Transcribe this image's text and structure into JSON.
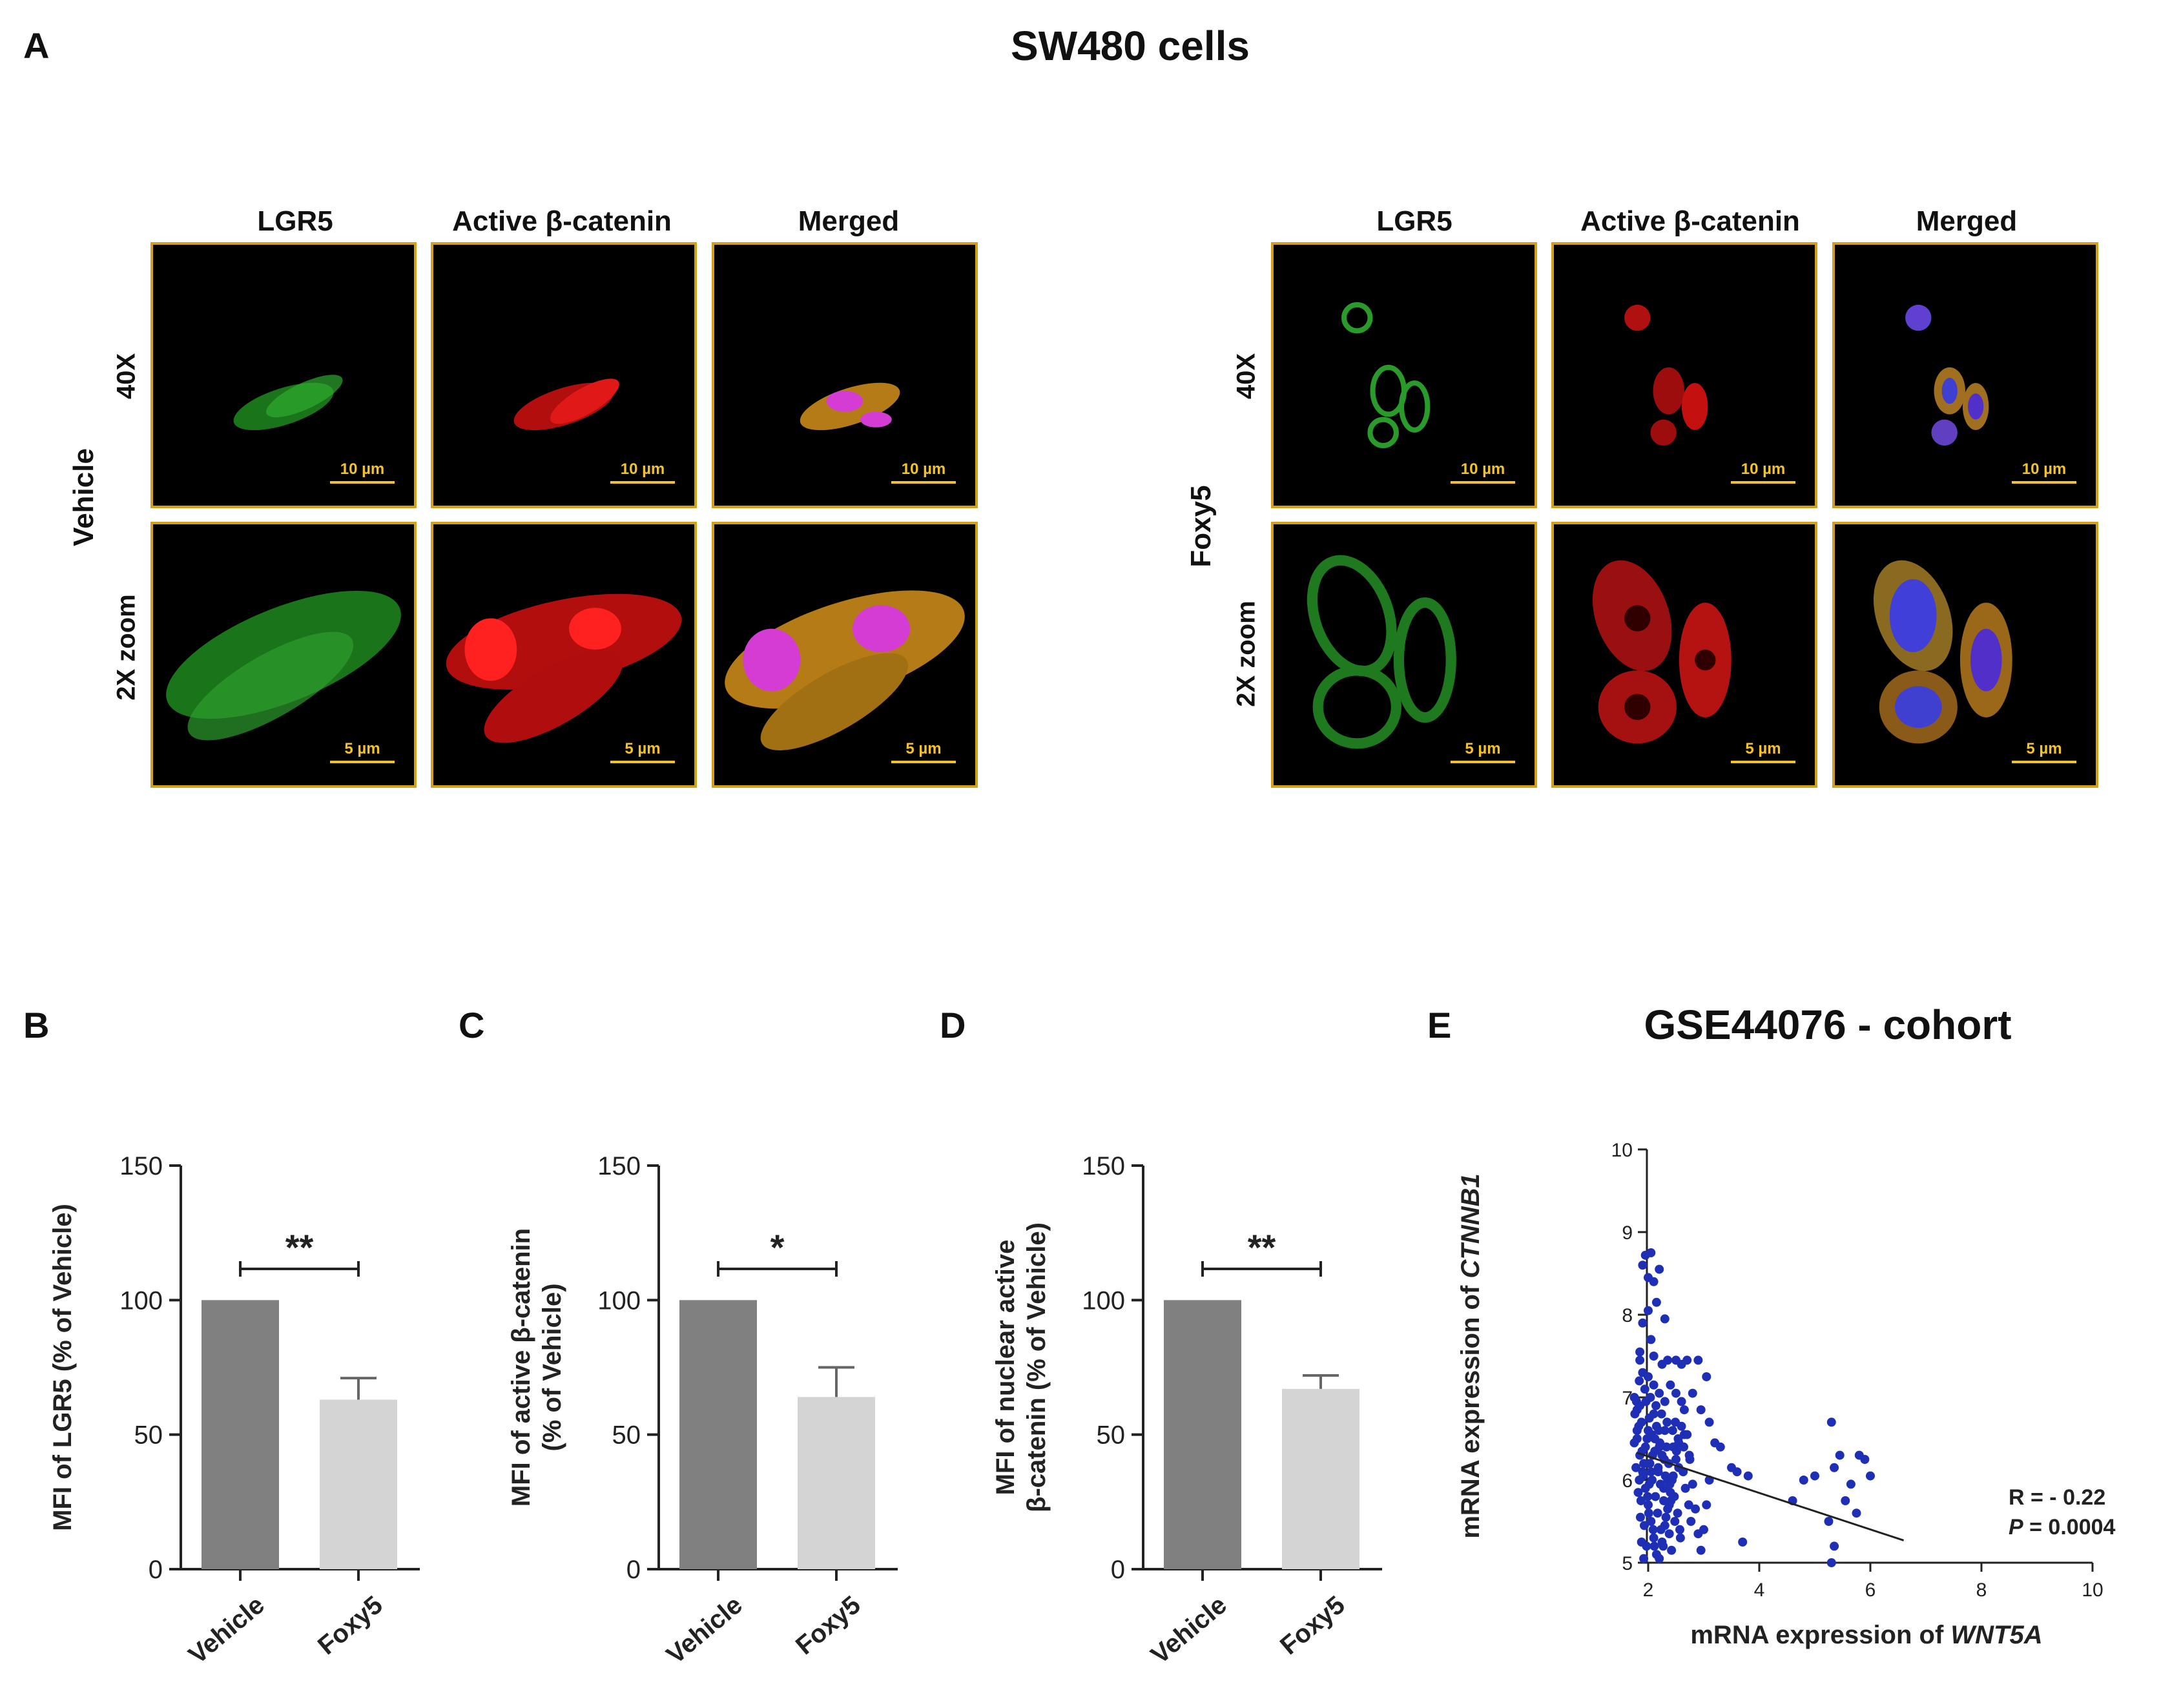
{
  "panel_a": {
    "letter": "A",
    "title": "SW480 cells",
    "groups": [
      {
        "name": "Vehicle",
        "columns": [
          "LGR5",
          "Active β-catenin",
          "Merged"
        ],
        "rows": [
          {
            "label": "40X",
            "scale_bar": "10 µm"
          },
          {
            "label": "2X zoom",
            "scale_bar": "5 µm"
          }
        ]
      },
      {
        "name": "Foxy5",
        "columns": [
          "LGR5",
          "Active β-catenin",
          "Merged"
        ],
        "rows": [
          {
            "label": "40X",
            "scale_bar": "10 µm"
          },
          {
            "label": "2X zoom",
            "scale_bar": "5 µm"
          }
        ]
      }
    ]
  },
  "chart_data": [
    {
      "panel": "B",
      "type": "bar",
      "categories": [
        "Vehicle",
        "Foxy5"
      ],
      "values": [
        100,
        63
      ],
      "errors": [
        0,
        8
      ],
      "colors": [
        "#808080",
        "#d4d4d4"
      ],
      "ylabel": "MFI of LGR5 (% of Vehicle)",
      "ylim": [
        0,
        150
      ],
      "yticks": [
        "0",
        "50",
        "100",
        "150"
      ],
      "significance": "**"
    },
    {
      "panel": "C",
      "type": "bar",
      "categories": [
        "Vehicle",
        "Foxy5"
      ],
      "values": [
        100,
        64
      ],
      "errors": [
        0,
        11
      ],
      "colors": [
        "#808080",
        "#d4d4d4"
      ],
      "ylabel_lines": [
        "MFI of active β-catenin",
        "(% of Vehicle)"
      ],
      "ylim": [
        0,
        150
      ],
      "yticks": [
        "0",
        "50",
        "100",
        "150"
      ],
      "significance": "*"
    },
    {
      "panel": "D",
      "type": "bar",
      "categories": [
        "Vehicle",
        "Foxy5"
      ],
      "values": [
        100,
        67
      ],
      "errors": [
        0,
        5
      ],
      "colors": [
        "#808080",
        "#d4d4d4"
      ],
      "ylabel_lines": [
        "MFI of nuclear active",
        "β-catenin (% of Vehicle)"
      ],
      "ylim": [
        0,
        150
      ],
      "yticks": [
        "0",
        "50",
        "100",
        "150"
      ],
      "significance": "**"
    },
    {
      "panel": "E",
      "type": "scatter",
      "title": "GSE44076 - cohort",
      "xlabel_prefix": "mRNA expression of ",
      "xlabel_gene": "WNT5A",
      "ylabel_prefix": "mRNA expression of ",
      "ylabel_gene": "CTNNB1",
      "xlim": [
        0,
        10
      ],
      "ylim": [
        5,
        10
      ],
      "xticks": [
        "2",
        "4",
        "6",
        "8",
        "10"
      ],
      "yticks": [
        "5",
        "6",
        "7",
        "8",
        "9",
        "10"
      ],
      "color": "#1f2fb5",
      "fit_line": {
        "x": [
          1.8,
          6.6
        ],
        "y": [
          6.33,
          5.27
        ]
      },
      "stats_r": "R = - 0.22",
      "stats_p_label": "P",
      "stats_p_value": " = 0.0004",
      "points": [
        [
          1.75,
          7.0
        ],
        [
          1.8,
          6.85
        ],
        [
          1.85,
          7.45
        ],
        [
          1.9,
          8.6
        ],
        [
          1.95,
          8.72
        ],
        [
          2.0,
          8.45
        ],
        [
          2.05,
          8.75
        ],
        [
          2.1,
          8.4
        ],
        [
          2.2,
          8.55
        ],
        [
          2.15,
          8.15
        ],
        [
          2.0,
          8.05
        ],
        [
          1.9,
          7.9
        ],
        [
          2.3,
          7.95
        ],
        [
          2.05,
          7.7
        ],
        [
          1.85,
          7.55
        ],
        [
          2.1,
          7.5
        ],
        [
          2.25,
          7.4
        ],
        [
          2.35,
          7.45
        ],
        [
          2.5,
          7.45
        ],
        [
          2.6,
          7.4
        ],
        [
          2.7,
          7.45
        ],
        [
          2.9,
          7.45
        ],
        [
          3.05,
          7.25
        ],
        [
          2.8,
          7.05
        ],
        [
          2.95,
          6.85
        ],
        [
          3.1,
          6.7
        ],
        [
          3.2,
          6.45
        ],
        [
          3.3,
          6.4
        ],
        [
          3.5,
          6.15
        ],
        [
          3.6,
          6.1
        ],
        [
          3.8,
          6.05
        ],
        [
          3.7,
          5.25
        ],
        [
          4.6,
          5.75
        ],
        [
          4.8,
          6.0
        ],
        [
          5.0,
          6.05
        ],
        [
          5.3,
          6.7
        ],
        [
          5.35,
          6.15
        ],
        [
          5.45,
          6.3
        ],
        [
          5.55,
          5.75
        ],
        [
          5.25,
          5.5
        ],
        [
          5.35,
          5.2
        ],
        [
          5.3,
          5.0
        ],
        [
          5.75,
          5.6
        ],
        [
          5.8,
          6.3
        ],
        [
          5.9,
          6.25
        ],
        [
          6.0,
          6.05
        ],
        [
          5.65,
          5.95
        ],
        [
          1.8,
          6.6
        ],
        [
          1.85,
          6.3
        ],
        [
          1.9,
          6.1
        ],
        [
          1.95,
          5.9
        ],
        [
          2.0,
          5.7
        ],
        [
          2.05,
          5.5
        ],
        [
          2.1,
          5.3
        ],
        [
          2.15,
          5.1
        ],
        [
          2.2,
          5.05
        ],
        [
          2.25,
          5.25
        ],
        [
          2.3,
          5.45
        ],
        [
          2.35,
          5.65
        ],
        [
          2.4,
          5.85
        ],
        [
          2.45,
          6.05
        ],
        [
          2.5,
          6.25
        ],
        [
          2.55,
          6.45
        ],
        [
          2.6,
          6.65
        ],
        [
          2.65,
          6.85
        ],
        [
          2.7,
          6.55
        ],
        [
          2.75,
          6.25
        ],
        [
          2.8,
          5.95
        ],
        [
          2.85,
          5.65
        ],
        [
          2.9,
          5.35
        ],
        [
          2.95,
          5.15
        ],
        [
          3.0,
          5.4
        ],
        [
          3.05,
          5.7
        ],
        [
          3.1,
          6.0
        ],
        [
          1.75,
          6.45
        ],
        [
          1.78,
          6.15
        ],
        [
          1.82,
          5.85
        ],
        [
          1.86,
          5.55
        ],
        [
          1.88,
          5.25
        ],
        [
          1.92,
          5.05
        ],
        [
          1.96,
          6.95
        ],
        [
          2.02,
          6.75
        ],
        [
          2.06,
          6.55
        ],
        [
          2.12,
          6.35
        ],
        [
          2.18,
          6.15
        ],
        [
          2.22,
          5.95
        ],
        [
          2.28,
          5.75
        ],
        [
          2.32,
          5.55
        ],
        [
          2.38,
          5.35
        ],
        [
          2.42,
          5.15
        ],
        [
          1.84,
          7.2
        ],
        [
          1.94,
          7.1
        ],
        [
          2.04,
          7.0
        ],
        [
          2.14,
          6.9
        ],
        [
          2.24,
          6.8
        ],
        [
          2.34,
          6.7
        ],
        [
          2.44,
          6.6
        ],
        [
          2.54,
          6.5
        ],
        [
          2.64,
          6.4
        ],
        [
          2.74,
          6.3
        ],
        [
          1.88,
          6.7
        ],
        [
          1.98,
          6.5
        ],
        [
          2.08,
          6.3
        ],
        [
          2.18,
          6.1
        ],
        [
          2.28,
          5.9
        ],
        [
          2.38,
          5.7
        ],
        [
          2.48,
          5.5
        ],
        [
          2.58,
          5.3
        ],
        [
          1.9,
          7.3
        ],
        [
          2.0,
          7.25
        ],
        [
          2.1,
          7.15
        ],
        [
          2.2,
          7.05
        ],
        [
          2.3,
          6.95
        ],
        [
          2.4,
          7.15
        ],
        [
          2.5,
          7.05
        ],
        [
          2.6,
          6.95
        ],
        [
          1.76,
          6.8
        ],
        [
          1.8,
          6.5
        ],
        [
          1.84,
          6.0
        ],
        [
          1.87,
          5.75
        ],
        [
          1.93,
          5.45
        ],
        [
          1.97,
          5.2
        ],
        [
          2.03,
          6.2
        ],
        [
          2.07,
          6.0
        ],
        [
          2.13,
          5.8
        ],
        [
          2.17,
          5.6
        ],
        [
          2.23,
          5.4
        ],
        [
          2.27,
          5.2
        ],
        [
          2.33,
          6.4
        ],
        [
          2.37,
          6.2
        ],
        [
          2.43,
          6.0
        ],
        [
          2.47,
          5.8
        ],
        [
          2.53,
          5.6
        ],
        [
          2.57,
          5.4
        ],
        [
          2.63,
          6.1
        ],
        [
          2.67,
          5.9
        ],
        [
          2.73,
          5.7
        ],
        [
          2.77,
          5.5
        ],
        [
          1.79,
          6.95
        ],
        [
          1.83,
          6.65
        ],
        [
          1.89,
          6.35
        ],
        [
          1.91,
          6.05
        ],
        [
          1.99,
          5.8
        ],
        [
          2.01,
          5.6
        ],
        [
          2.09,
          5.4
        ],
        [
          2.11,
          5.2
        ],
        [
          2.19,
          6.6
        ],
        [
          2.21,
          6.45
        ],
        [
          2.29,
          6.25
        ],
        [
          2.31,
          6.05
        ],
        [
          2.39,
          5.95
        ],
        [
          2.41,
          5.75
        ],
        [
          2.49,
          6.7
        ],
        [
          2.51,
          6.35
        ],
        [
          1.95,
          6.4
        ],
        [
          2.05,
          6.1
        ],
        [
          2.15,
          6.65
        ],
        [
          2.25,
          6.3
        ],
        [
          2.35,
          6.0
        ],
        [
          1.85,
          6.9
        ],
        [
          2.45,
          6.4
        ],
        [
          2.55,
          6.15
        ],
        [
          2.65,
          6.55
        ],
        [
          2.0,
          6.6
        ],
        [
          2.1,
          6.8
        ],
        [
          2.2,
          6.4
        ],
        [
          2.3,
          6.6
        ],
        [
          1.92,
          6.2
        ],
        [
          2.02,
          5.95
        ],
        [
          2.12,
          6.5
        ]
      ]
    }
  ]
}
